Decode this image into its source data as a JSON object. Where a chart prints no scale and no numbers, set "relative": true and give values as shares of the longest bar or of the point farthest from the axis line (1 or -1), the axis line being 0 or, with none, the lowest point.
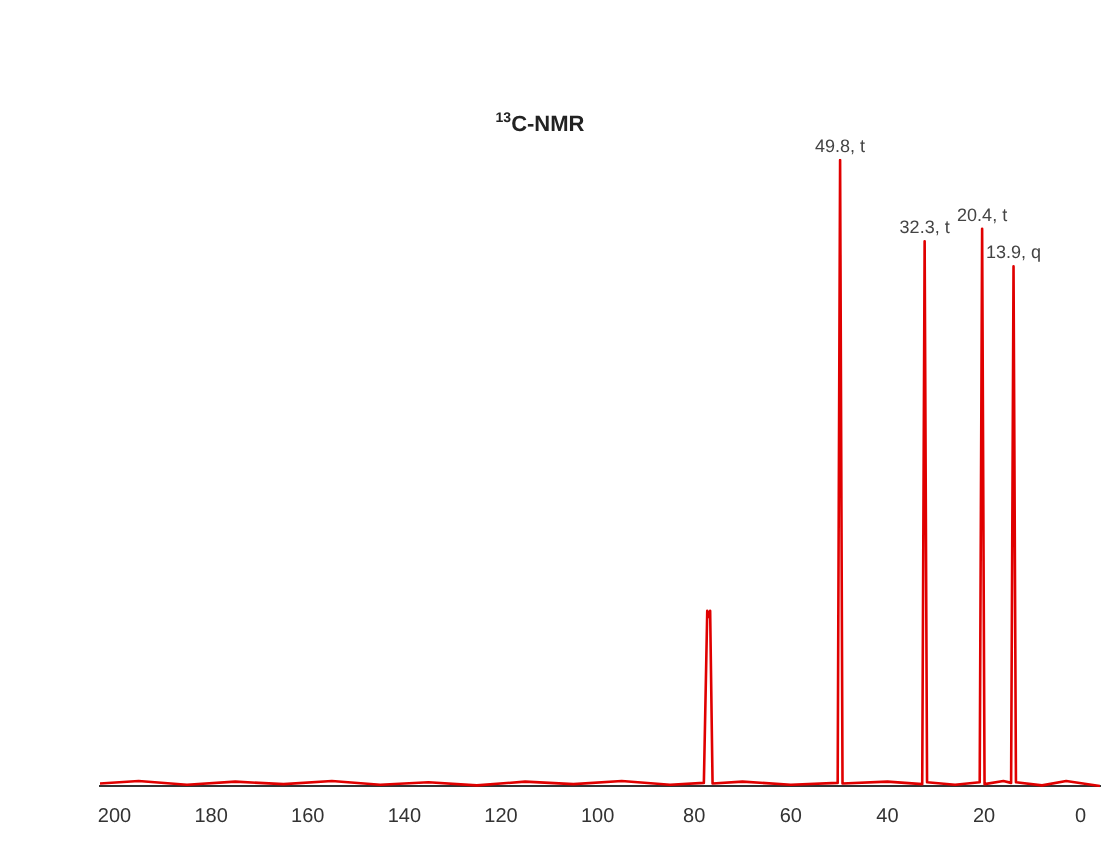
{
  "chart_data": {
    "type": "line",
    "title": "$^{13}$C-NMR",
    "relative": true,
    "xlim": [
      203,
      -4
    ],
    "xticks": [
      200,
      180,
      160,
      140,
      120,
      100,
      80,
      60,
      40,
      20,
      0
    ],
    "grid": false,
    "legend": false,
    "marker": "none",
    "line_style": "solid",
    "series": [
      {
        "color": "#e00000",
        "x": [
          203,
          195,
          185,
          175,
          165,
          155,
          145,
          135,
          125,
          115,
          105,
          95,
          85,
          78,
          77.3,
          77.0,
          76.7,
          76.2,
          70,
          60,
          50.3,
          49.8,
          49.3,
          40,
          32.8,
          32.3,
          31.8,
          26,
          20.9,
          20.4,
          19.9,
          16,
          14.4,
          13.9,
          13.4,
          8,
          3,
          -4
        ],
        "values": [
          0.004,
          0.008,
          0.002,
          0.007,
          0.003,
          0.008,
          0.002,
          0.006,
          0.001,
          0.007,
          0.003,
          0.008,
          0.002,
          0.005,
          0.28,
          0.27,
          0.28,
          0.004,
          0.007,
          0.002,
          0.005,
          1,
          0.004,
          0.007,
          0.003,
          0.87,
          0.006,
          0.002,
          0.006,
          0.89,
          0.003,
          0.008,
          0.005,
          0.83,
          0.006,
          0.001,
          0.008,
          0
        ]
      }
    ],
    "annotations": [
      {
        "text": "49.8, t",
        "x": 49.8,
        "y": 1
      },
      {
        "text": "32.3, t",
        "x": 32.3,
        "y": 0.87
      },
      {
        "text": "20.4, t",
        "x": 20.4,
        "y": 0.89
      },
      {
        "text": "13.9, q",
        "x": 13.9,
        "y": 0.83
      }
    ]
  }
}
